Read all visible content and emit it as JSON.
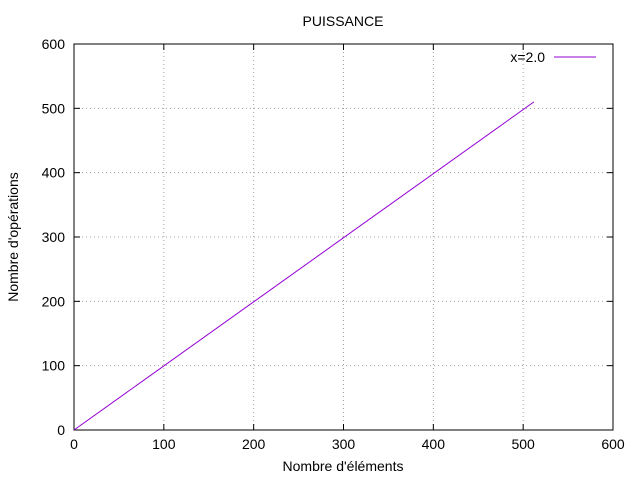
{
  "chart_data": {
    "type": "line",
    "title": "PUISSANCE",
    "xlabel": "Nombre d'éléments",
    "ylabel": "Nombre d'opérations",
    "xlim": [
      0,
      600
    ],
    "ylim": [
      0,
      600
    ],
    "xticks": [
      0,
      100,
      200,
      300,
      400,
      500,
      600
    ],
    "yticks": [
      0,
      100,
      200,
      300,
      400,
      500,
      600
    ],
    "grid": true,
    "legend_position": "top-right",
    "series": [
      {
        "name": "x=2.0",
        "color": "#9400d3",
        "x": [
          0,
          512
        ],
        "y": [
          0,
          510
        ]
      }
    ]
  }
}
